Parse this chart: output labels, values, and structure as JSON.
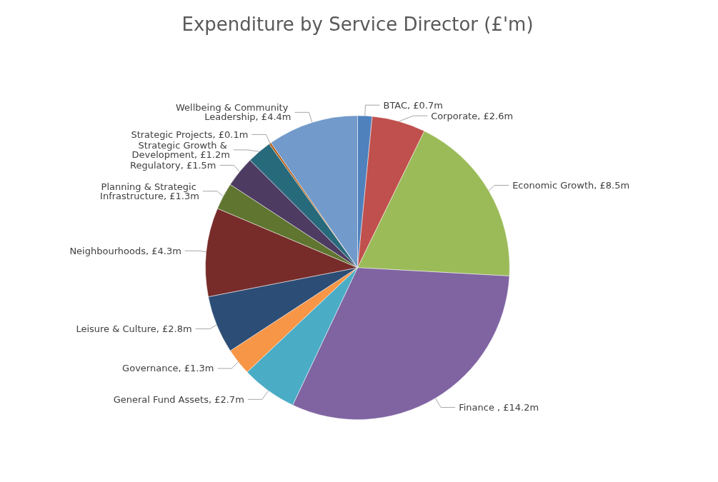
{
  "chart_data": {
    "type": "pie",
    "title": "Expenditure by Service Director (£'m)",
    "categories": [
      "BTAC",
      "Corporate",
      "Economic Growth",
      "Finance ",
      "General Fund Assets",
      "Governance",
      "Leisure & Culture",
      "Neighbourhoods",
      "Planning & Strategic Infrastructure",
      "Regulatory",
      "Strategic Growth & Development",
      "Strategic Projects",
      "Wellbeing & Community Leadership"
    ],
    "values": [
      0.7,
      2.6,
      8.5,
      14.2,
      2.7,
      1.3,
      2.8,
      4.3,
      1.3,
      1.5,
      1.2,
      0.1,
      4.4
    ],
    "value_labels": [
      "£0.7m",
      "£2.6m",
      "£8.5m",
      "£14.2m",
      "£2.7m",
      "£1.3m",
      "£2.8m",
      "£4.3m",
      "£1.3m",
      "£1.5m",
      "£1.2m",
      "£0.1m",
      "£4.4m"
    ],
    "colors": [
      "#4f81bd",
      "#c0504d",
      "#9bbb59",
      "#8064a2",
      "#4bacc6",
      "#f79646",
      "#2c4d75",
      "#772c2a",
      "#5f7530",
      "#4d3b62",
      "#276a7c",
      "#b65708",
      "#729aca"
    ],
    "legend": false
  }
}
